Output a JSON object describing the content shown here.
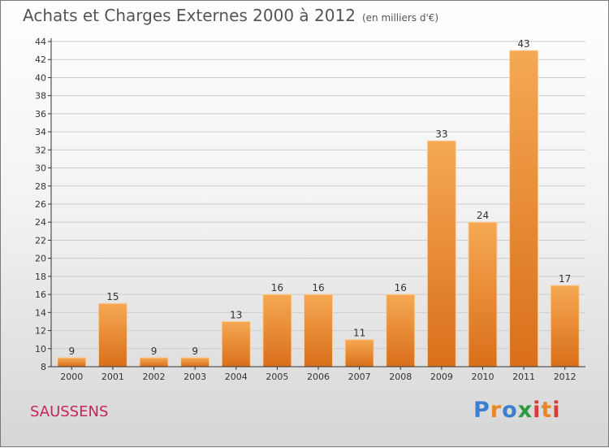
{
  "header": {
    "title": "Achats et Charges Externes 2000 à 2012",
    "subtitle": "(en milliers d'€)"
  },
  "footer": {
    "town": "SAUSSENS",
    "logo": "Proxiti",
    "logo_colors": [
      "#3a7fd0",
      "#e8862a",
      "#3a7fd0",
      "#2b9a3e",
      "#d93b3b",
      "#e8862a",
      "#d93b3b"
    ]
  },
  "colors": {
    "bar_top": "#f6a853",
    "bar_bottom": "#d96f1a",
    "bar_edge": "#f9d0a0",
    "grid": "#cccccc",
    "axis": "#333333"
  },
  "chart_data": {
    "type": "bar",
    "categories": [
      "2000",
      "2001",
      "2002",
      "2003",
      "2004",
      "2005",
      "2006",
      "2007",
      "2008",
      "2009",
      "2010",
      "2011",
      "2012"
    ],
    "values": [
      9,
      15,
      9,
      9,
      13,
      16,
      16,
      11,
      16,
      33,
      24,
      43,
      17
    ],
    "ylim": [
      8,
      44
    ],
    "yticks": [
      8,
      10,
      12,
      14,
      16,
      18,
      20,
      22,
      24,
      26,
      28,
      30,
      32,
      34,
      36,
      38,
      40,
      42,
      44
    ],
    "grid": true,
    "legend": "none"
  }
}
